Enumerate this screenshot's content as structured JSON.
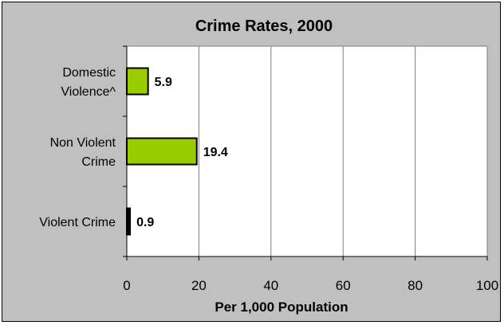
{
  "chart_data": {
    "type": "bar",
    "orientation": "horizontal",
    "title": "Crime Rates, 2000",
    "xlabel": "Per 1,000 Population",
    "ylabel": "",
    "xlim": [
      0,
      100
    ],
    "ticks": [
      0,
      20,
      40,
      60,
      80,
      100
    ],
    "grid": true,
    "categories": [
      {
        "lines": [
          "Domestic",
          "Violence^"
        ],
        "value": 5.9,
        "label": "5.9",
        "color": "#99cc00"
      },
      {
        "lines": [
          "Non Violent",
          "Crime"
        ],
        "value": 19.4,
        "label": "19.4",
        "color": "#99cc00"
      },
      {
        "lines": [
          "Violent Crime"
        ],
        "value": 0.9,
        "label": "0.9",
        "color": "#000000"
      }
    ]
  }
}
